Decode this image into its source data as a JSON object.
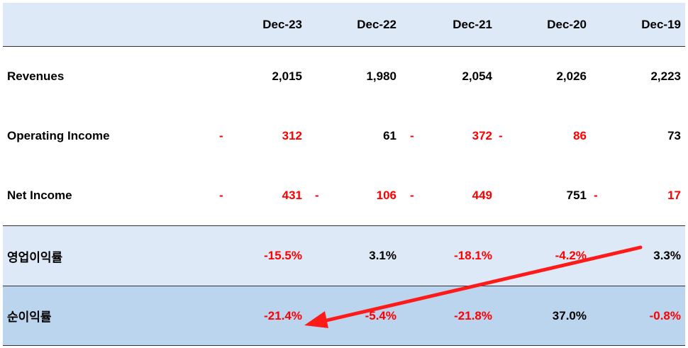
{
  "header": {
    "columns": [
      "Dec-23",
      "Dec-22",
      "Dec-21",
      "Dec-20",
      "Dec-19"
    ]
  },
  "rows": {
    "revenues": {
      "label": "Revenues",
      "values": [
        "2,015",
        "1,980",
        "2,054",
        "2,026",
        "2,223"
      ]
    },
    "operating_income": {
      "label": "Operating Income",
      "dash": "-",
      "values": [
        "312",
        "61",
        "372",
        "86",
        "73"
      ]
    },
    "net_income": {
      "label": "Net Income",
      "dash": "-",
      "values": [
        "431",
        "106",
        "449",
        "751",
        "17"
      ]
    },
    "operating_margin": {
      "label": "영업이익률",
      "values": [
        "-15.5%",
        "3.1%",
        "-18.1%",
        "-4.2%",
        "3.3%"
      ]
    },
    "net_margin": {
      "label": "순이익률",
      "values": [
        "-21.4%",
        "-5.4%",
        "-21.8%",
        "37.0%",
        "-0.8%"
      ]
    }
  },
  "colors": {
    "negative": "#ff0000",
    "header_bg": "#dde9f6",
    "margin_bg": "#dde9f6",
    "net_margin_bg": "#bcd5ee",
    "arrow": "#ff1a1a"
  }
}
